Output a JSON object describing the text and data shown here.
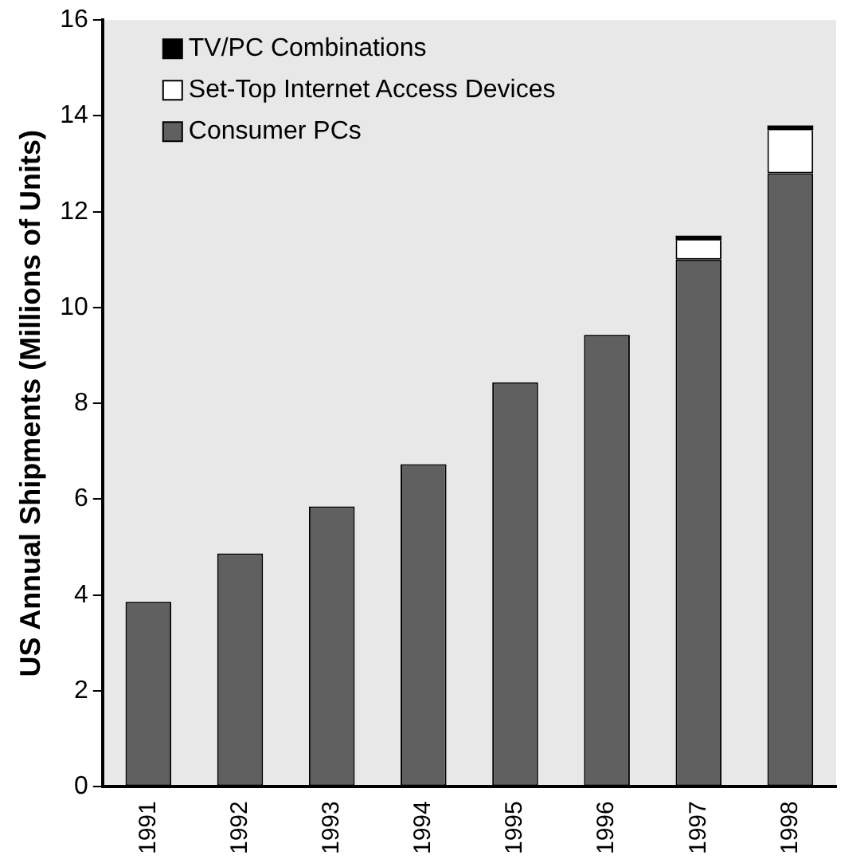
{
  "chart_data": {
    "type": "bar",
    "ylabel": "US Annual Shipments (Millions of Units)",
    "categories": [
      "1991",
      "1992",
      "1993",
      "1994",
      "1995",
      "1996",
      "1997",
      "1998"
    ],
    "series": [
      {
        "name": "Consumer PCs",
        "color": "#606060",
        "values": [
          3.86,
          4.87,
          5.85,
          6.73,
          8.44,
          9.43,
          11.0,
          12.8
        ]
      },
      {
        "name": "Set-Top Internet Access Devices",
        "color": "#ffffff",
        "values": [
          null,
          null,
          null,
          null,
          null,
          null,
          0.4,
          0.9
        ]
      },
      {
        "name": "TV/PC Combinations",
        "color": "#000000",
        "values": [
          null,
          null,
          null,
          null,
          null,
          null,
          0.1,
          0.1
        ]
      }
    ],
    "stacked": true,
    "ylim": [
      0,
      16
    ],
    "yticks": [
      0,
      2,
      4,
      6,
      8,
      10,
      12,
      14,
      16
    ],
    "grid": false,
    "legend": "top left"
  }
}
